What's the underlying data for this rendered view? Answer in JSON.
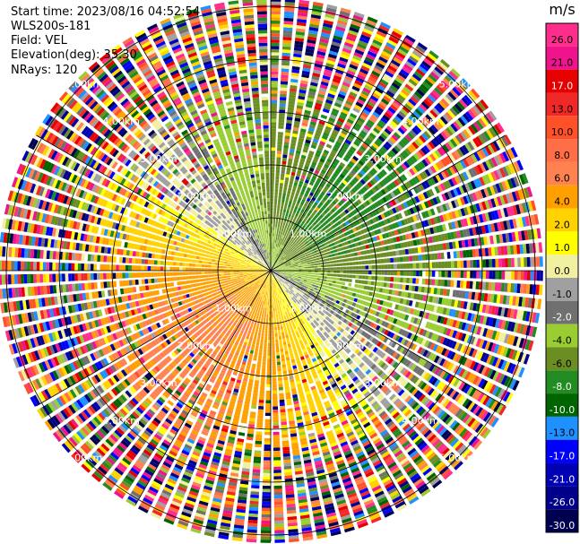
{
  "header": {
    "start_time": "Start time: 2023/08/16 04:52:54",
    "instrument": "WLS200s-181",
    "field": "Field: VEL",
    "elevation": "Elevation(deg): 35.30",
    "nrays": "NRays: 120"
  },
  "chart_data": {
    "type": "heatmap",
    "projection": "polar-ppi",
    "field": "VEL",
    "units": "m/s",
    "nrays": 120,
    "elevation_deg": 35.3,
    "range_rings_km": [
      1.0,
      2.0,
      3.0,
      4.0,
      5.0
    ],
    "ring_labels": [
      "1.00km",
      "2.00km",
      "3.00km",
      "4.00km",
      "5.00km"
    ],
    "spoke_count": 12,
    "colorbar": {
      "label": "m/s",
      "ticks": [
        "26.0",
        "21.0",
        "17.0",
        "13.0",
        "10.0",
        "8.0",
        "6.0",
        "4.0",
        "2.0",
        "1.0",
        "0.0",
        "-1.0",
        "-2.0",
        "-4.0",
        "-6.0",
        "-8.0",
        "-10.0",
        "-13.0",
        "-17.0",
        "-21.0",
        "-26.0",
        "-30.0"
      ],
      "colors": [
        "#ff2d8c",
        "#f0148c",
        "#e60000",
        "#f02828",
        "#ff5028",
        "#ff6e46",
        "#ff8250",
        "#ffa000",
        "#ffd200",
        "#ffff00",
        "#f0f0a0",
        "#a0a0a0",
        "#707070",
        "#9acd32",
        "#6b8e23",
        "#228b22",
        "#006400",
        "#1e90ff",
        "#0000ff",
        "#0000b4",
        "#00008b",
        "#000050"
      ]
    },
    "field_pattern": {
      "near_region_km": 3.5,
      "west_south": "positive 1 to 6 m/s (yellow, orange core)",
      "north_east": "negative -1 to -6 m/s (olive/green core)",
      "outer_region": "noise (random full-scale values)"
    }
  }
}
